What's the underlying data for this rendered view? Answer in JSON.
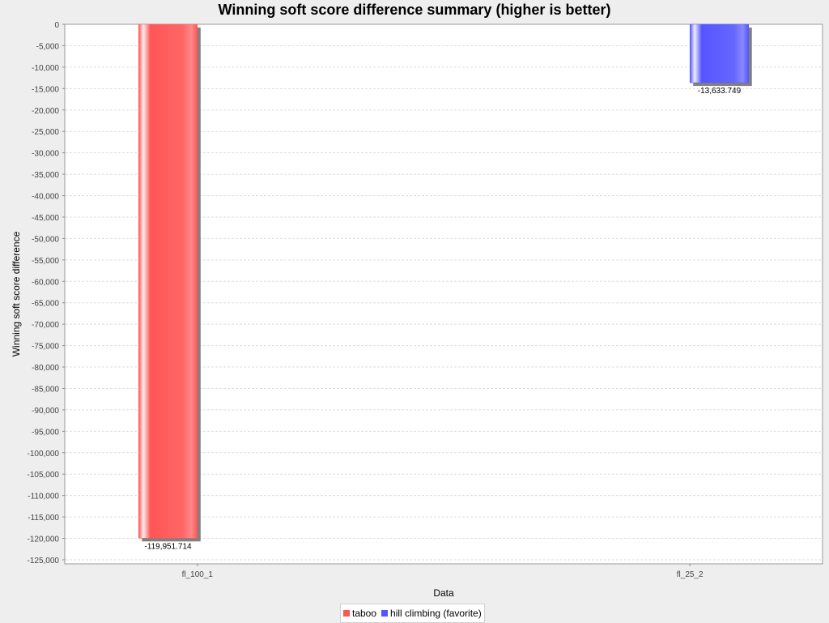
{
  "chart_data": {
    "type": "bar",
    "title": "Winning soft score difference summary (higher is better)",
    "xlabel": "Data",
    "ylabel": "Winning soft score difference",
    "categories": [
      "fl_100_1",
      "fl_25_2"
    ],
    "series": [
      {
        "name": "taboo",
        "values": [
          -119951.714,
          null
        ],
        "color": "#ff5555",
        "value_labels": [
          "-119,951.714",
          null
        ]
      },
      {
        "name": "hill climbing (favorite)",
        "values": [
          null,
          -13633.749
        ],
        "color": "#5555ff",
        "value_labels": [
          null,
          "-13,633.749"
        ]
      }
    ],
    "ylim": [
      -125000,
      0
    ],
    "ytick_step": 5000,
    "grid": true,
    "legend_position": "bottom-center"
  }
}
